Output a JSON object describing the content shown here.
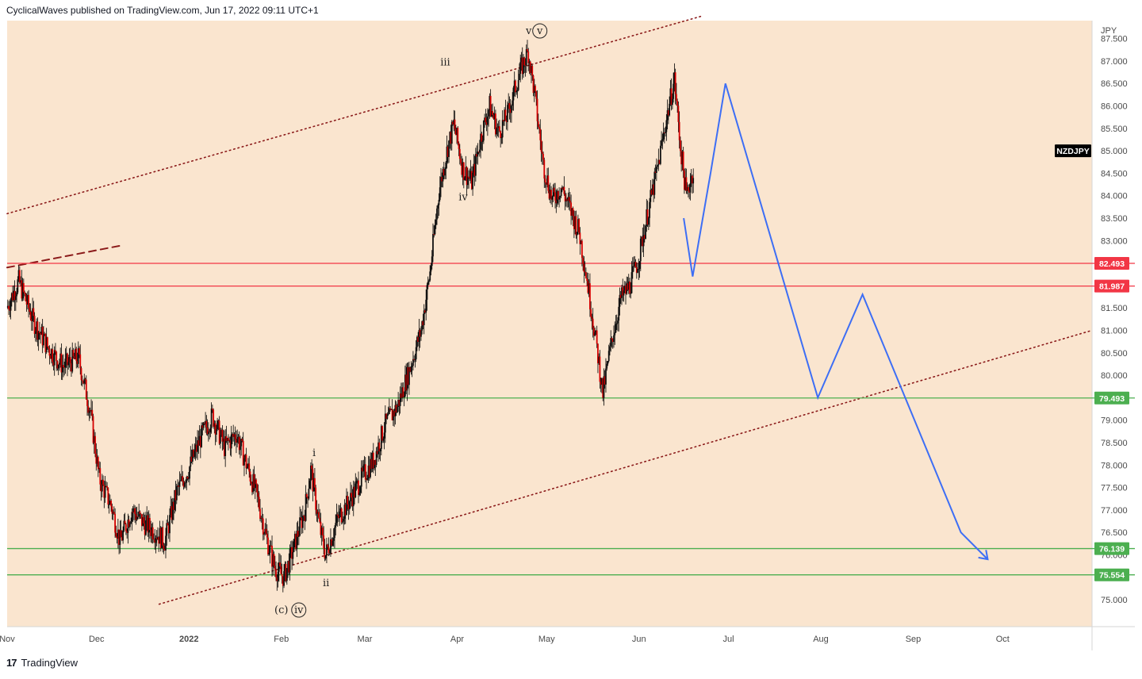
{
  "header": {
    "publisher_line": "CyclicalWaves published on TradingView.com, Jun 17, 2022 09:11 UTC+1"
  },
  "footer": {
    "brand": "TradingView",
    "logo_glyph": "17"
  },
  "chart_data": {
    "type": "candlestick",
    "symbol": "NZDJPY",
    "currency": "JPY",
    "x_axis": {
      "range": [
        "2021-11-01",
        "2022-10-31"
      ],
      "ticks": [
        "Nov",
        "Dec",
        "2022",
        "Feb",
        "Mar",
        "Apr",
        "May",
        "Jun",
        "Jul",
        "Aug",
        "Sep",
        "Oct"
      ]
    },
    "y_axis": {
      "range": [
        74.4,
        87.9
      ],
      "ticks": [
        "75.000",
        "75.500",
        "76.000",
        "76.500",
        "77.000",
        "77.500",
        "78.000",
        "78.500",
        "79.000",
        "79.500",
        "80.000",
        "80.500",
        "81.000",
        "81.500",
        "82.000",
        "82.500",
        "83.000",
        "83.500",
        "84.000",
        "84.500",
        "85.000",
        "85.500",
        "86.000",
        "86.500",
        "87.000",
        "87.500"
      ]
    },
    "price_path": [
      [
        "2021-11-01",
        81.5
      ],
      [
        "2021-11-05",
        82.1
      ],
      [
        "2021-11-10",
        81.2
      ],
      [
        "2021-11-15",
        80.6
      ],
      [
        "2021-11-20",
        80.2
      ],
      [
        "2021-11-25",
        80.4
      ],
      [
        "2021-11-29",
        79.2
      ],
      [
        "2021-12-02",
        77.7
      ],
      [
        "2021-12-06",
        77.1
      ],
      [
        "2021-12-09",
        76.3
      ],
      [
        "2021-12-13",
        77.0
      ],
      [
        "2021-12-17",
        76.7
      ],
      [
        "2021-12-21",
        76.5
      ],
      [
        "2021-12-24",
        76.3
      ],
      [
        "2021-12-28",
        77.4
      ],
      [
        "2022-01-01",
        77.9
      ],
      [
        "2022-01-05",
        78.6
      ],
      [
        "2022-01-09",
        79.1
      ],
      [
        "2022-01-13",
        78.4
      ],
      [
        "2022-01-17",
        78.7
      ],
      [
        "2022-01-21",
        77.9
      ],
      [
        "2022-01-24",
        77.3
      ],
      [
        "2022-01-27",
        76.4
      ],
      [
        "2022-01-30",
        75.7
      ],
      [
        "2022-02-02",
        75.5
      ],
      [
        "2022-02-05",
        76.1
      ],
      [
        "2022-02-09",
        77.0
      ],
      [
        "2022-02-11",
        77.9
      ],
      [
        "2022-02-14",
        76.6
      ],
      [
        "2022-02-16",
        76.0
      ],
      [
        "2022-02-20",
        76.8
      ],
      [
        "2022-02-24",
        77.2
      ],
      [
        "2022-02-28",
        77.7
      ],
      [
        "2022-03-04",
        78.1
      ],
      [
        "2022-03-08",
        78.9
      ],
      [
        "2022-03-12",
        79.3
      ],
      [
        "2022-03-16",
        80.1
      ],
      [
        "2022-03-20",
        81.0
      ],
      [
        "2022-03-23",
        82.3
      ],
      [
        "2022-03-26",
        84.1
      ],
      [
        "2022-03-29",
        85.1
      ],
      [
        "2022-03-31",
        85.6
      ],
      [
        "2022-04-03",
        84.6
      ],
      [
        "2022-04-06",
        84.3
      ],
      [
        "2022-04-09",
        85.3
      ],
      [
        "2022-04-12",
        86.0
      ],
      [
        "2022-04-15",
        85.4
      ],
      [
        "2022-04-18",
        85.8
      ],
      [
        "2022-04-21",
        86.5
      ],
      [
        "2022-04-23",
        86.9
      ],
      [
        "2022-04-25",
        87.2
      ],
      [
        "2022-04-27",
        86.3
      ],
      [
        "2022-04-30",
        84.7
      ],
      [
        "2022-05-03",
        83.9
      ],
      [
        "2022-05-06",
        84.2
      ],
      [
        "2022-05-09",
        83.7
      ],
      [
        "2022-05-12",
        83.2
      ],
      [
        "2022-05-15",
        82.0
      ],
      [
        "2022-05-18",
        80.6
      ],
      [
        "2022-05-20",
        79.6
      ],
      [
        "2022-05-23",
        80.8
      ],
      [
        "2022-05-26",
        81.7
      ],
      [
        "2022-05-29",
        82.0
      ],
      [
        "2022-06-01",
        82.6
      ],
      [
        "2022-06-04",
        83.6
      ],
      [
        "2022-06-07",
        84.5
      ],
      [
        "2022-06-10",
        85.6
      ],
      [
        "2022-06-13",
        86.6
      ],
      [
        "2022-06-15",
        85.1
      ],
      [
        "2022-06-17",
        84.0
      ],
      [
        "2022-06-19",
        84.5
      ]
    ],
    "projection_path": [
      [
        "2022-06-16",
        83.5
      ],
      [
        "2022-06-19",
        82.2
      ],
      [
        "2022-06-25",
        84.5
      ],
      [
        "2022-06-30",
        86.5
      ],
      [
        "2022-07-31",
        79.5
      ],
      [
        "2022-08-15",
        81.8
      ],
      [
        "2022-09-17",
        76.5
      ],
      [
        "2022-09-26",
        75.9
      ]
    ],
    "horizontal_levels": [
      {
        "value": 82.493,
        "label": "82.493",
        "color": "#f23645"
      },
      {
        "value": 81.987,
        "label": "81.987",
        "color": "#f23645"
      },
      {
        "value": 79.493,
        "label": "79.493",
        "color": "#4caf50"
      },
      {
        "value": 76.139,
        "label": "76.139",
        "color": "#4caf50"
      },
      {
        "value": 75.554,
        "label": "75.554",
        "color": "#4caf50"
      }
    ],
    "channel_lines": [
      {
        "style": "dotted",
        "from": [
          "2021-11-01",
          83.6
        ],
        "to": [
          "2022-06-22",
          88.0
        ]
      },
      {
        "style": "dotted",
        "from": [
          "2021-12-22",
          74.9
        ],
        "to": [
          "2022-10-31",
          81.0
        ]
      },
      {
        "style": "dashed",
        "from": [
          "2021-11-01",
          82.4
        ],
        "to": [
          "2021-12-10",
          82.9
        ]
      }
    ],
    "wave_labels": [
      {
        "text": "v",
        "circled": "v",
        "date": "2022-04-25",
        "price": 87.6
      },
      {
        "text": "iii",
        "date": "2022-03-28",
        "price": 86.9
      },
      {
        "text": "iv",
        "date": "2022-04-03",
        "price": 83.9
      },
      {
        "text": "i",
        "date": "2022-02-12",
        "price": 78.2
      },
      {
        "text": "ii",
        "date": "2022-02-16",
        "price": 75.3
      },
      {
        "text": "(c)",
        "circled": "iv",
        "date": "2022-02-01",
        "price": 74.7
      }
    ],
    "colors": {
      "background": "#fae5cf",
      "candles": "#d50000",
      "projection": "#3d6ef5",
      "channel": "#8b1a1a",
      "symbol_badge": "#000000"
    }
  }
}
